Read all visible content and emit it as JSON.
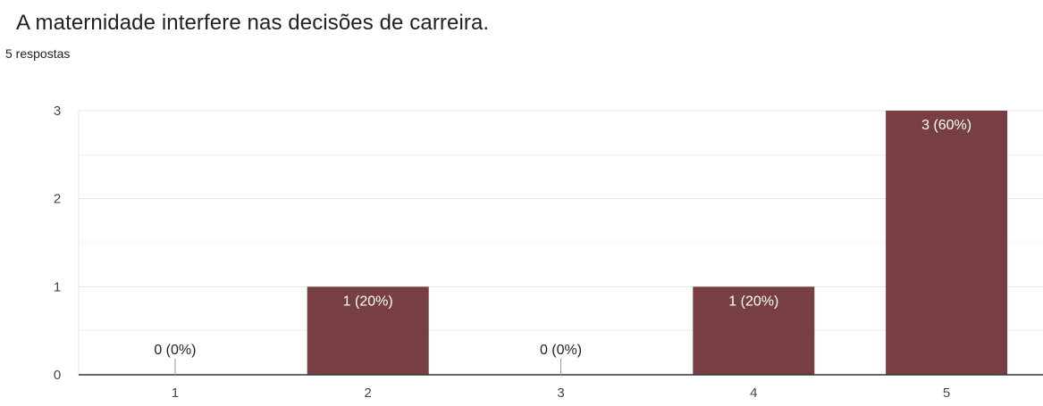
{
  "question": {
    "title": "A maternidade interfere nas decisões de carreira.",
    "responses": "5 respostas"
  },
  "colors": {
    "bar": "#773f41",
    "grid": "#e6e6e6",
    "grid_minor": "#f1f1f1",
    "axis": "#333333",
    "tick_text": "#444444",
    "label_inside": "#ffffff",
    "label_outside": "#222222"
  },
  "chart_data": {
    "type": "bar",
    "categories": [
      "1",
      "2",
      "3",
      "4",
      "5"
    ],
    "values": [
      0,
      1,
      0,
      1,
      3
    ],
    "data_labels": [
      "0 (0%)",
      "1 (20%)",
      "0 (0%)",
      "1 (20%)",
      "3 (60%)"
    ],
    "y_ticks": [
      "0",
      "1",
      "2",
      "3"
    ],
    "ylim": [
      0,
      3
    ],
    "grid": true,
    "legend": "none"
  }
}
